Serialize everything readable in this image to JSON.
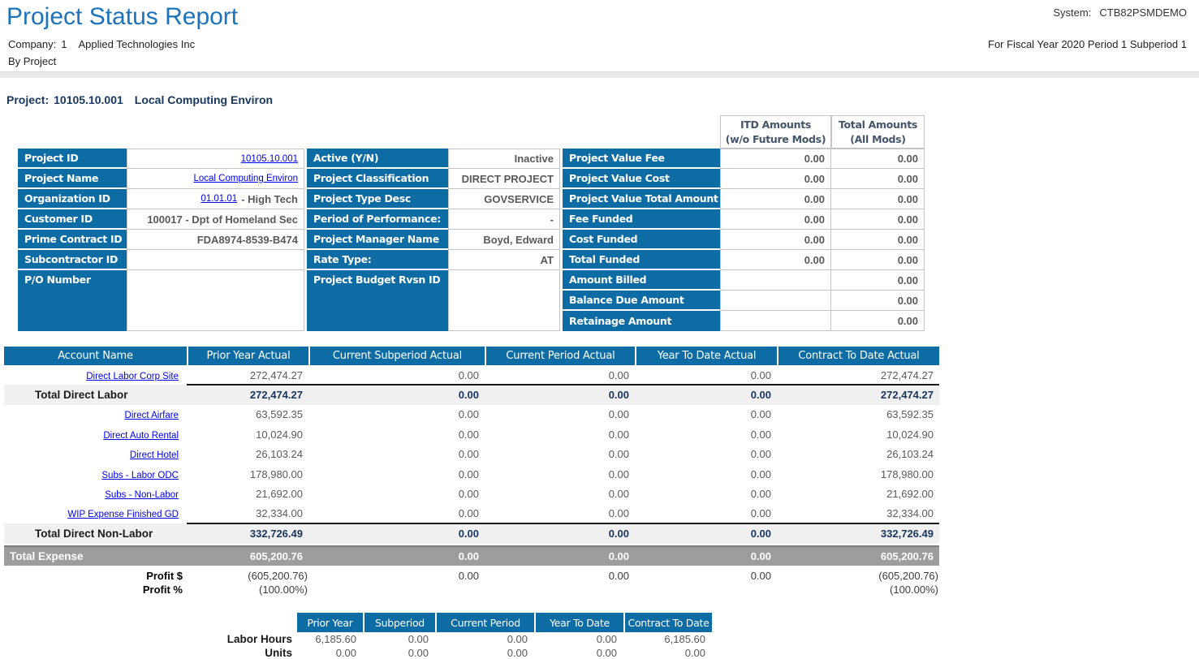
{
  "report": {
    "title": "Project Status Report",
    "system_label": "System:",
    "system_value": "CTB82PSMDEMO",
    "company_label": "Company:",
    "company_number": "1",
    "company_name": "Applied Technologies Inc",
    "grouping": "By Project",
    "fiscal_line": "For Fiscal Year 2020 Period 1 Subperiod 1",
    "project_label": "Project:",
    "project_id": "10105.10.001",
    "project_name": "Local Computing Environ"
  },
  "colors": {
    "header_blue": "#0D6CA4",
    "title_blue": "#1B74BB",
    "link_blue": "#0000EE",
    "navy_text": "#17375E",
    "value_gray": "#595959",
    "total_row_bg": "#F0F0F0",
    "grand_row_bg": "#9D9D9D"
  },
  "info": {
    "left_rows": [
      {
        "label": "Project ID",
        "value": "10105.10.001",
        "link": true
      },
      {
        "label": "Project Name",
        "value": "Local Computing Environ",
        "link": true
      },
      {
        "label": "Organization ID",
        "value": "01.01.01",
        "link": true,
        "suffix": "- High Tech"
      },
      {
        "label": "Customer ID",
        "value": "100017 - Dpt of Homeland Sec"
      },
      {
        "label": "Prime Contract ID",
        "value": "FDA8974-8539-B474"
      },
      {
        "label": "Subcontractor ID",
        "value": ""
      },
      {
        "label": "P/O Number",
        "value": "",
        "tall": true
      }
    ],
    "middle_rows": [
      {
        "label": "Active (Y/N)",
        "value": "Inactive"
      },
      {
        "label": "Project Classification",
        "value": "DIRECT PROJECT"
      },
      {
        "label": "Project Type Desc",
        "value": "GOVSERVICE"
      },
      {
        "label": "Period of Performance:",
        "value": "-"
      },
      {
        "label": "Project Manager Name",
        "value": "Boyd, Edward"
      },
      {
        "label": "Rate Type:",
        "value": "AT"
      },
      {
        "label": "Project Budget Rvsn ID",
        "value": "",
        "tall": true
      }
    ],
    "amounts_headers": [
      {
        "line1": "ITD Amounts",
        "line2": "(w/o Future Mods)"
      },
      {
        "line1": "Total Amounts",
        "line2": "(All Mods)"
      }
    ],
    "amount_rows": [
      {
        "label": "Project Value Fee",
        "itd": "0.00",
        "total": "0.00"
      },
      {
        "label": "Project Value Cost",
        "itd": "0.00",
        "total": "0.00"
      },
      {
        "label": "Project Value Total Amount",
        "itd": "0.00",
        "total": "0.00"
      },
      {
        "label": "Fee Funded",
        "itd": "0.00",
        "total": "0.00"
      },
      {
        "label": "Cost Funded",
        "itd": "0.00",
        "total": "0.00"
      },
      {
        "label": "Total Funded",
        "itd": "0.00",
        "total": "0.00"
      },
      {
        "label": "Amount Billed",
        "itd": "",
        "total": "0.00"
      },
      {
        "label": "Balance Due Amount",
        "itd": "",
        "total": "0.00"
      },
      {
        "label": "Retainage Amount",
        "itd": "",
        "total": "0.00"
      }
    ]
  },
  "main_table": {
    "headers": [
      "Account Name",
      "Prior Year Actual",
      "Current Subperiod Actual",
      "Current Period Actual",
      "Year To Date Actual",
      "Contract To Date Actual"
    ],
    "rows": [
      {
        "type": "link",
        "label": "Direct Labor Corp Site",
        "values": [
          "272,474.27",
          "0.00",
          "0.00",
          "0.00",
          "272,474.27"
        ]
      },
      {
        "type": "total",
        "label": "Total Direct Labor",
        "values": [
          "272,474.27",
          "0.00",
          "0.00",
          "0.00",
          "272,474.27"
        ]
      },
      {
        "type": "link",
        "label": "Direct Airfare",
        "values": [
          "63,592.35",
          "0.00",
          "0.00",
          "0.00",
          "63,592.35"
        ]
      },
      {
        "type": "link",
        "label": "Direct Auto Rental",
        "values": [
          "10,024.90",
          "0.00",
          "0.00",
          "0.00",
          "10,024.90"
        ]
      },
      {
        "type": "link",
        "label": "Direct Hotel",
        "values": [
          "26,103.24",
          "0.00",
          "0.00",
          "0.00",
          "26,103.24"
        ]
      },
      {
        "type": "link",
        "label": "Subs - Labor ODC",
        "values": [
          "178,980.00",
          "0.00",
          "0.00",
          "0.00",
          "178,980.00"
        ]
      },
      {
        "type": "link",
        "label": "Subs - Non-Labor",
        "values": [
          "21,692.00",
          "0.00",
          "0.00",
          "0.00",
          "21,692.00"
        ]
      },
      {
        "type": "link",
        "label": "WIP Expense Finished GD",
        "values": [
          "32,334.00",
          "0.00",
          "0.00",
          "0.00",
          "32,334.00"
        ]
      },
      {
        "type": "total",
        "label": "Total Direct Non-Labor",
        "values": [
          "332,726.49",
          "0.00",
          "0.00",
          "0.00",
          "332,726.49"
        ]
      },
      {
        "type": "grand",
        "label": "Total Expense",
        "values": [
          "605,200.76",
          "0.00",
          "0.00",
          "0.00",
          "605,200.76"
        ]
      },
      {
        "type": "profit",
        "label": "Profit $",
        "values": [
          "(605,200.76)",
          "0.00",
          "0.00",
          "0.00",
          "(605,200.76)"
        ]
      },
      {
        "type": "profit",
        "label": "Profit %",
        "values": [
          "(100.00%)",
          "",
          "",
          "",
          "(100.00%)"
        ]
      }
    ]
  },
  "hours_table": {
    "headers": [
      "Prior Year",
      "Subperiod",
      "Current Period",
      "Year To Date",
      "Contract To Date"
    ],
    "rows": [
      {
        "label": "Labor Hours",
        "values": [
          "6,185.60",
          "0.00",
          "0.00",
          "0.00",
          "6,185.60"
        ]
      },
      {
        "label": "Units",
        "values": [
          "0.00",
          "0.00",
          "0.00",
          "0.00",
          "0.00"
        ]
      }
    ]
  }
}
